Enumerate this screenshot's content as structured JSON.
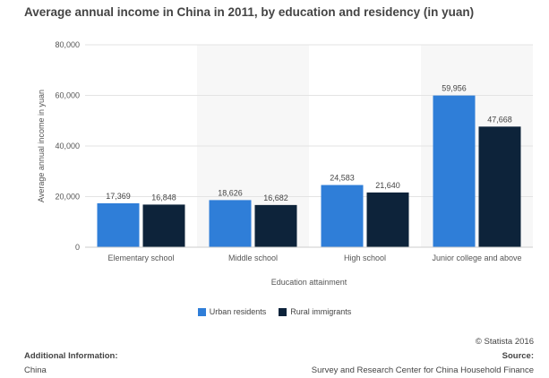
{
  "chart_data": {
    "type": "bar",
    "title": "Average annual income in China in 2011, by education and residency (in yuan)",
    "categories": [
      "Elementary school",
      "Middle school",
      "High school",
      "Junior college and above"
    ],
    "series": [
      {
        "name": "Urban residents",
        "color": "#2f7ed8",
        "values": [
          17369,
          18626,
          24583,
          59956
        ],
        "labels": [
          "17,369",
          "18,626",
          "24,583",
          "59,956"
        ]
      },
      {
        "name": "Rural immigrants",
        "color": "#0d233a",
        "values": [
          16848,
          16682,
          21640,
          47668
        ],
        "labels": [
          "16,848",
          "16,682",
          "21,640",
          "47,668"
        ]
      }
    ],
    "xlabel": "Education attainment",
    "ylabel": "Average annual income in yuan",
    "ylim": [
      0,
      80000
    ],
    "yticks": [
      0,
      20000,
      40000,
      60000,
      80000
    ],
    "ytick_labels": [
      "0",
      "20,000",
      "40,000",
      "60,000",
      "80,000"
    ],
    "legend_position": "bottom-center",
    "grid": true
  },
  "footer": {
    "additional_info_label": "Additional Information:",
    "additional_info_value": "China",
    "copyright": "© Statista 2016",
    "source_label": "Source:",
    "source_value": "Survey and Research Center for China Household Finance"
  }
}
